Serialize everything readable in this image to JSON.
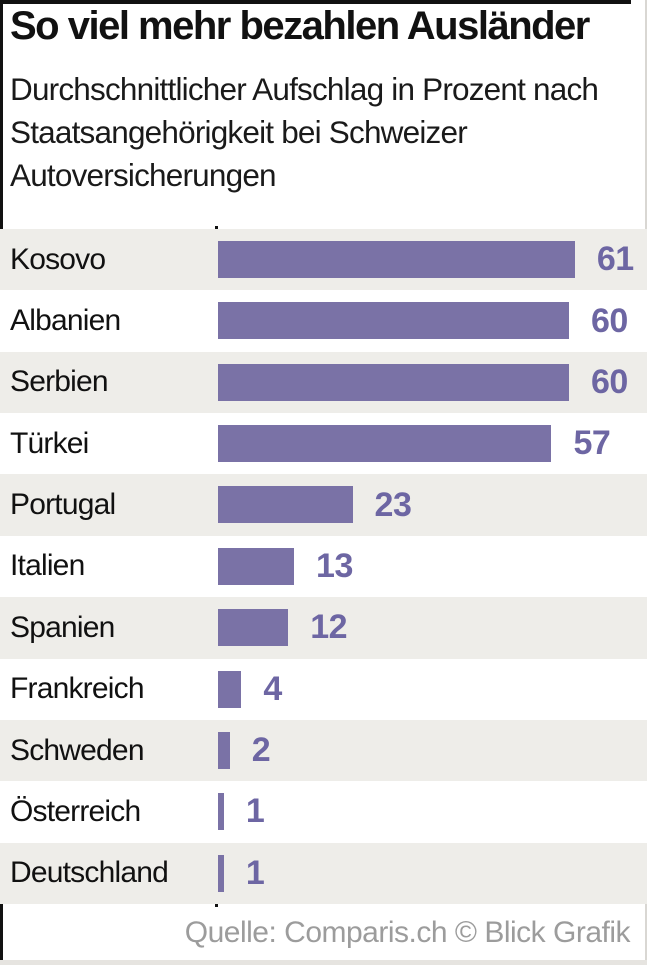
{
  "title": "So viel mehr bezahlen Ausländer",
  "subtitle": "Durchschnittlicher Aufschlag in Prozent nach Staatsangehörigkeit bei Schweizer Autoversicherungen",
  "source": "Quelle: Comparis.ch  © Blick Grafik",
  "colors": {
    "bar": "#7a72a6",
    "value_text": "#6d66a3",
    "row_shade": "#eeede9",
    "source_text": "#9c9c9c",
    "frame": "#111111"
  },
  "chart_data": {
    "type": "bar",
    "orientation": "horizontal",
    "title": "So viel mehr bezahlen Ausländer",
    "subtitle": "Durchschnittlicher Aufschlag in Prozent nach Staatsangehörigkeit bei Schweizer Autoversicherungen",
    "categories": [
      "Kosovo",
      "Albanien",
      "Serbien",
      "Türkei",
      "Portugal",
      "Italien",
      "Spanien",
      "Frankreich",
      "Schweden",
      "Österreich",
      "Deutschland"
    ],
    "values": [
      61,
      60,
      60,
      57,
      23,
      13,
      12,
      4,
      2,
      1,
      1
    ],
    "unit": "Prozent",
    "xlim": [
      0,
      61
    ],
    "grid": false,
    "legend": false,
    "value_labels": "end-of-bar",
    "row_shading": "alternating, first row shaded",
    "source": "Quelle: Comparis.ch  © Blick Grafik"
  }
}
